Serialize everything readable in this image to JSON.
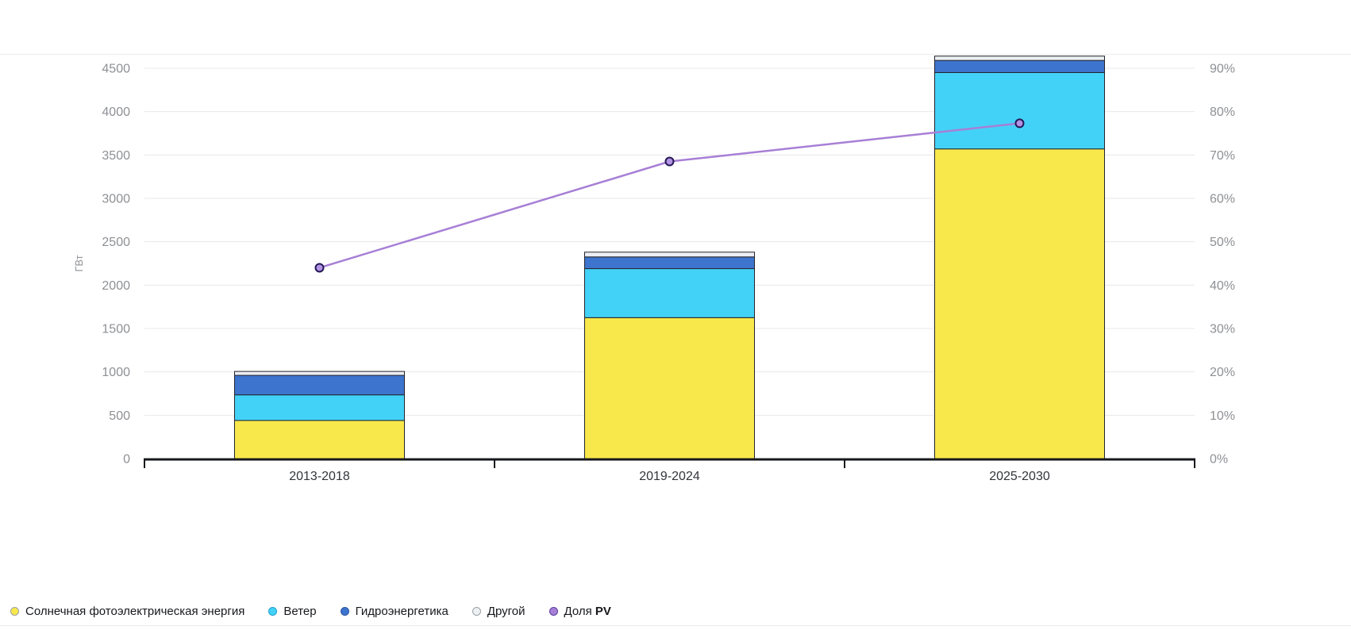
{
  "page": {
    "background": "#ffffff"
  },
  "chart_data": {
    "type": "bar",
    "subtype": "stacked-bar-with-line",
    "categories": [
      "2013-2018",
      "2019-2024",
      "2025-2030"
    ],
    "stack_series": [
      {
        "key": "solar",
        "name": "Солнечная фотоэлектрическая энергия",
        "color": "#f8e84b",
        "values": [
          440,
          1625,
          3570
        ]
      },
      {
        "key": "wind",
        "name": "Ветер",
        "color": "#43d2f7",
        "values": [
          295,
          565,
          880
        ]
      },
      {
        "key": "hydro",
        "name": "Гидроэнергетика",
        "color": "#3d74cd",
        "values": [
          225,
          135,
          140
        ]
      },
      {
        "key": "other",
        "name": "Другой",
        "color": "#ebeff3",
        "values": [
          45,
          55,
          50
        ]
      }
    ],
    "line_series": {
      "key": "pv-share",
      "name": "Доля PV",
      "color": "#a77fd6",
      "marker_fill": "#b393e3",
      "marker_stroke": "#241856",
      "values_pct": [
        44,
        68.5,
        77.3
      ]
    },
    "left_axis": {
      "label": "ГВт",
      "min": 0,
      "max": 4500,
      "tick_step": 500,
      "tick_labels": [
        "0",
        "500",
        "1000",
        "1500",
        "2000",
        "2500",
        "3000",
        "3500",
        "4000",
        "4500"
      ]
    },
    "right_axis": {
      "unit": "%",
      "min": 0,
      "max": 90,
      "tick_step": 10,
      "tick_labels": [
        "0%",
        "10%",
        "20%",
        "30%",
        "40%",
        "50%",
        "60%",
        "70%",
        "80%",
        "90%"
      ]
    },
    "grid": true,
    "legend_position": "bottom-left",
    "colors": {
      "grid": "#e8e8e8",
      "tick_label": "#8e9094",
      "category_label": "#33353a",
      "axis": "#17181c",
      "bar_stroke": "#23242c"
    }
  },
  "legend": {
    "items": [
      {
        "label": "Солнечная фотоэлектрическая энергия",
        "label_bold": "",
        "color": "#f8e84b",
        "border": "#9aa0a6"
      },
      {
        "label": "Ветер",
        "label_bold": "",
        "color": "#43d2f7",
        "border": "#1f9fce"
      },
      {
        "label": "Гидроэнергетика",
        "label_bold": "",
        "color": "#3d74cd",
        "border": "#2a55a3"
      },
      {
        "label": "Другой",
        "label_bold": "",
        "color": "#eef1f4",
        "border": "#9aa0a6"
      },
      {
        "label": "Доля",
        "label_bold": "PV",
        "color": "#a77fd6",
        "border": "#5b3e9e"
      }
    ]
  }
}
